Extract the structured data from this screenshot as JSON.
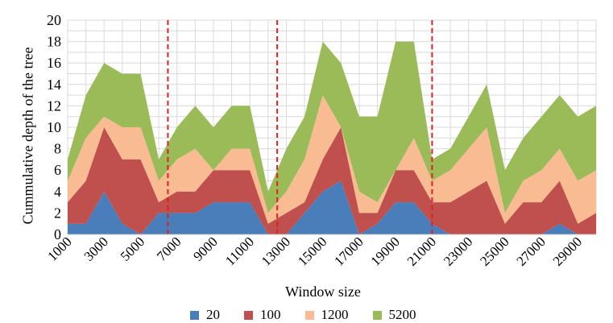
{
  "chart_data": {
    "type": "area",
    "stacked": true,
    "title": "",
    "xlabel": "Window size",
    "ylabel": "Cummulative depth of the tree",
    "ylim": [
      0,
      20
    ],
    "yticks": [
      "0",
      "2",
      "4",
      "6",
      "8",
      "10",
      "12",
      "14",
      "16",
      "18",
      "20"
    ],
    "grid": true,
    "legend": "bottom",
    "x": [
      1000,
      2000,
      3000,
      4000,
      5000,
      6000,
      7000,
      8000,
      9000,
      10000,
      11000,
      12000,
      13000,
      14000,
      15000,
      16000,
      17000,
      18000,
      19000,
      20000,
      21000,
      22000,
      23000,
      24000,
      25000,
      26000,
      27000,
      28000,
      29000,
      30000
    ],
    "xtick_labels": [
      "1000",
      "3000",
      "5000",
      "7000",
      "9000",
      "11000",
      "13000",
      "15000",
      "17000",
      "19000",
      "21000",
      "23000",
      "25000",
      "27000",
      "29000"
    ],
    "vertical_markers": [
      6500,
      12500,
      21000
    ],
    "marker_color": "#e02020",
    "series": [
      {
        "name": "20",
        "color": "#4a7ebb",
        "values": [
          1,
          1,
          4,
          1,
          0,
          2,
          2,
          2,
          3,
          3,
          3,
          0,
          0,
          2,
          4,
          5,
          0,
          1,
          3,
          3,
          1,
          0,
          0,
          0,
          0,
          0,
          0,
          1,
          0,
          0
        ]
      },
      {
        "name": "100",
        "color": "#c0504d",
        "values": [
          2,
          4,
          6,
          6,
          7,
          1,
          2,
          2,
          3,
          3,
          3,
          1,
          2,
          1,
          3,
          5,
          2,
          1,
          3,
          3,
          2,
          3,
          4,
          5,
          1,
          3,
          3,
          4,
          1,
          2
        ]
      },
      {
        "name": "1200",
        "color": "#f9bc92",
        "values": [
          2,
          4,
          1,
          3,
          3,
          2,
          3,
          4,
          0,
          2,
          2,
          1,
          2,
          4,
          6,
          0,
          2,
          1,
          0,
          3,
          2,
          3,
          4,
          5,
          1,
          2,
          3,
          3,
          4,
          4
        ]
      },
      {
        "name": "5200",
        "color": "#9bbb59",
        "values": [
          2,
          4,
          5,
          5,
          5,
          2,
          3,
          4,
          4,
          4,
          4,
          2,
          4,
          4,
          5,
          6,
          7,
          8,
          12,
          9,
          2,
          2,
          3,
          4,
          4,
          4,
          5,
          5,
          6,
          6
        ]
      }
    ]
  }
}
